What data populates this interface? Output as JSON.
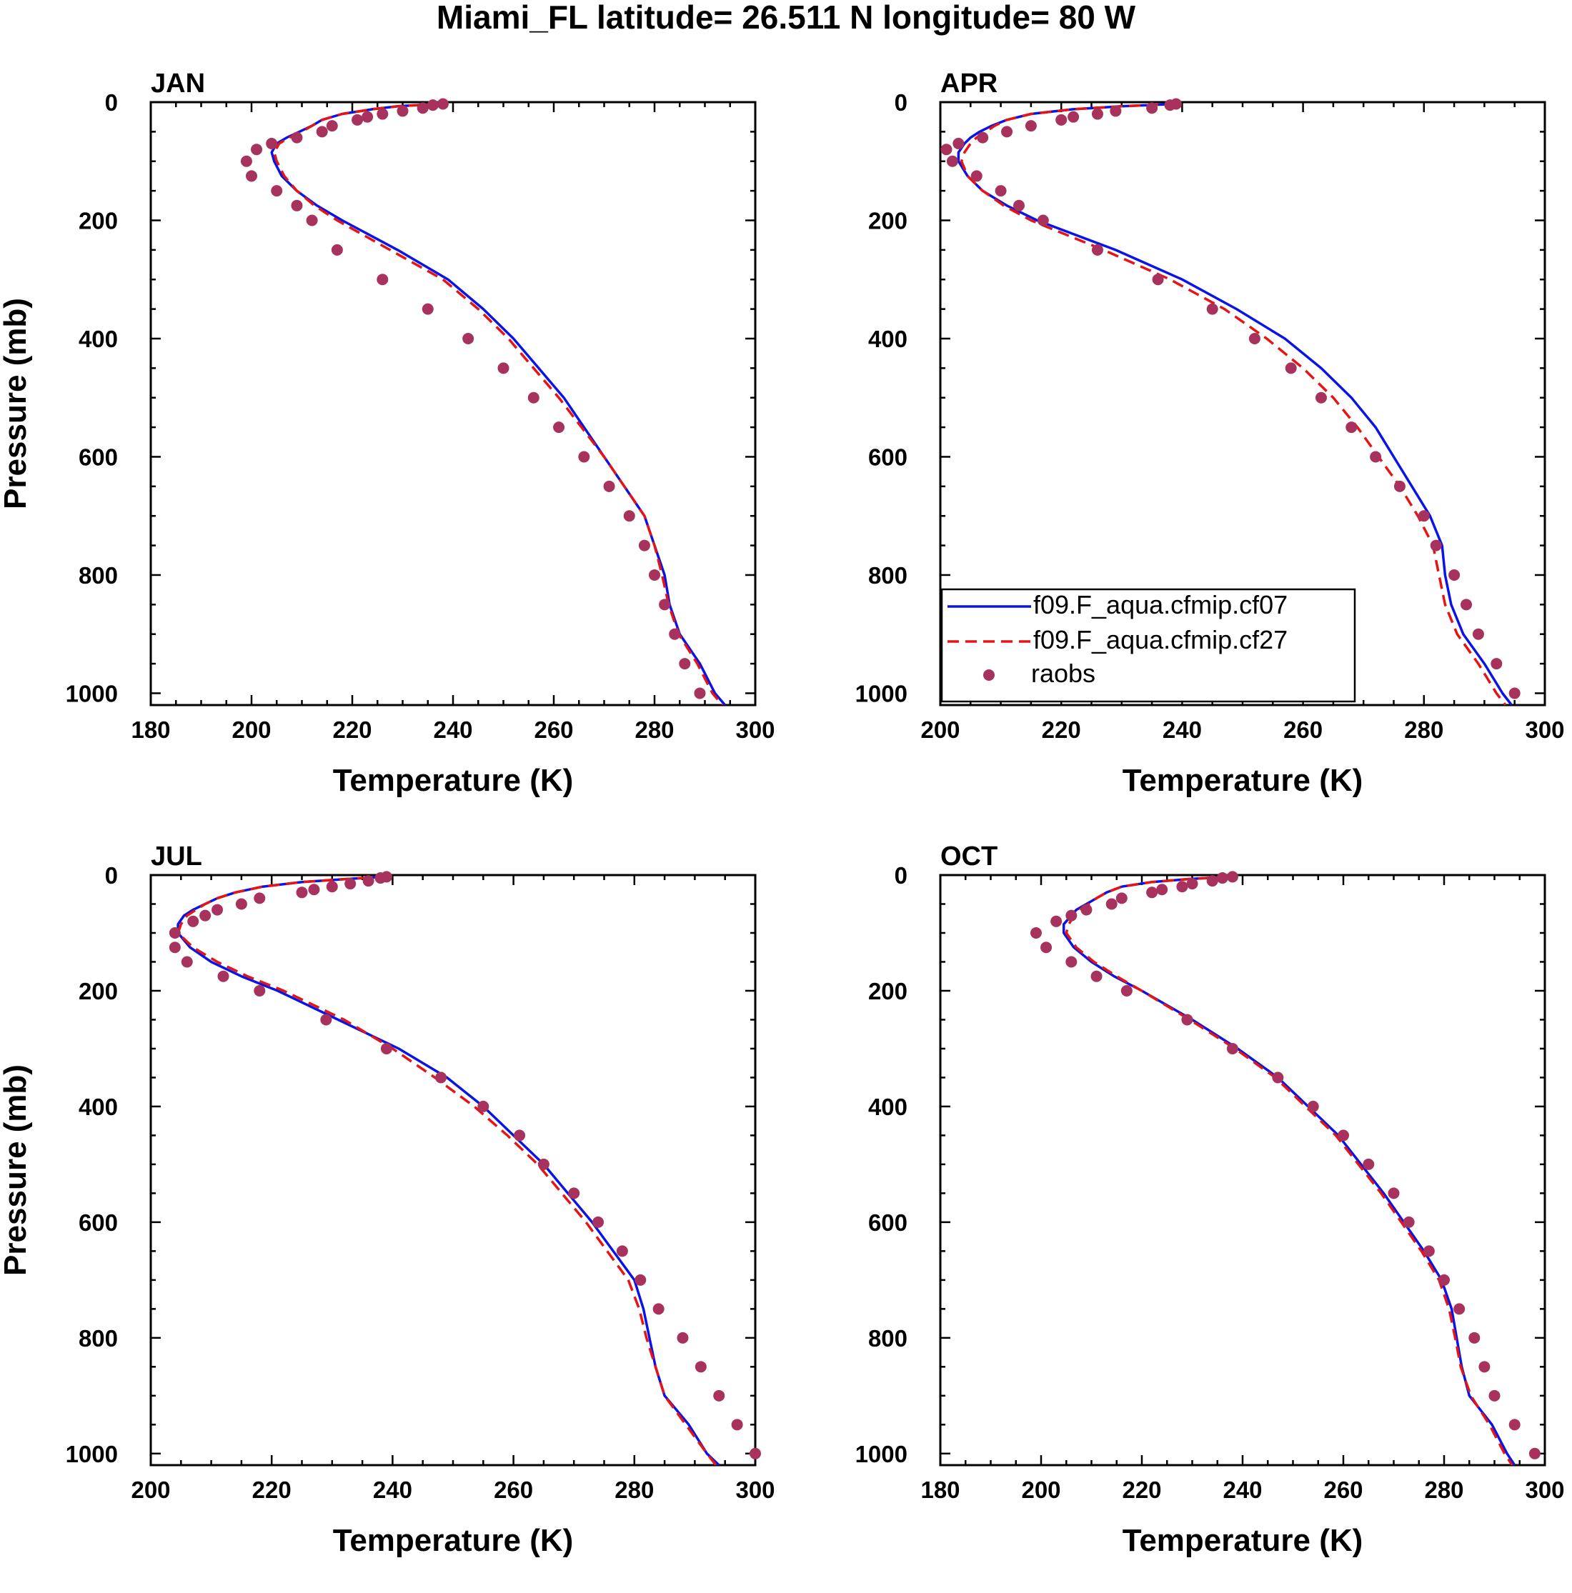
{
  "title": "Miami_FL  latitude= 26.511 N longitude= 80 W",
  "colors": {
    "cf07": "#0a14e6",
    "cf27": "#e61414",
    "raobs": "#a8325e",
    "axis": "#000000"
  },
  "legend": {
    "placement": "inside APR panel, lower-left",
    "entries": [
      "f09.F_aqua.cfmip.cf07",
      "f09.F_aqua.cfmip.cf27",
      "raobs"
    ]
  },
  "chart_data": [
    {
      "panel": "JAN",
      "type": "line",
      "xlabel": "Temperature (K)",
      "ylabel": "Pressure (mb)",
      "xlim": [
        180,
        300
      ],
      "xticks": [
        180,
        200,
        220,
        240,
        260,
        280,
        300
      ],
      "ylim": [
        1020,
        0
      ],
      "yticks": [
        0,
        200,
        400,
        600,
        800,
        1000
      ],
      "pressure": [
        3,
        7,
        12,
        20,
        30,
        40,
        50,
        60,
        70,
        85,
        100,
        125,
        150,
        175,
        200,
        250,
        300,
        350,
        400,
        450,
        500,
        550,
        600,
        650,
        700,
        750,
        800,
        850,
        900,
        950,
        1000,
        1020
      ],
      "series": [
        {
          "name": "f09.F_aqua.cfmip.cf07",
          "style": "solid",
          "values": [
            237,
            229,
            224,
            218,
            214,
            212,
            209.5,
            207,
            205,
            204,
            204.5,
            206,
            209,
            213,
            218,
            229,
            239,
            246,
            252,
            257,
            262,
            266,
            270,
            274,
            278,
            280,
            282,
            283,
            285,
            289,
            292,
            294
          ]
        },
        {
          "name": "f09.F_aqua.cfmip.cf27",
          "style": "dashed",
          "values": [
            237,
            229,
            224,
            218,
            214,
            212,
            210,
            207.5,
            205.5,
            204.5,
            205,
            206.5,
            209,
            212.5,
            217,
            227.5,
            238,
            245,
            251,
            256,
            261,
            265.5,
            270,
            274,
            278,
            280,
            281.5,
            282.8,
            284.8,
            288.5,
            291.5,
            293.5
          ]
        }
      ],
      "raobs": {
        "pressure": [
          3,
          5,
          10,
          15,
          20,
          25,
          30,
          40,
          50,
          60,
          70,
          80,
          100,
          125,
          150,
          175,
          200,
          250,
          300,
          350,
          400,
          450,
          500,
          550,
          600,
          650,
          700,
          750,
          800,
          850,
          900,
          950,
          1000
        ],
        "values": [
          238,
          236,
          234,
          230,
          226,
          223,
          221,
          216,
          214,
          209,
          204,
          201,
          199,
          200,
          205,
          209,
          212,
          217,
          226,
          235,
          243,
          250,
          256,
          261,
          266,
          271,
          275,
          278,
          280,
          282,
          284,
          286,
          289
        ]
      }
    },
    {
      "panel": "APR",
      "type": "line",
      "xlabel": "Temperature (K)",
      "ylabel": "",
      "xlim": [
        200,
        300
      ],
      "xticks": [
        200,
        220,
        240,
        260,
        280,
        300
      ],
      "ylim": [
        1020,
        0
      ],
      "yticks": [
        0,
        200,
        400,
        600,
        800,
        1000
      ],
      "pressure": [
        3,
        7,
        12,
        20,
        30,
        40,
        50,
        60,
        70,
        85,
        100,
        125,
        150,
        175,
        200,
        250,
        300,
        350,
        400,
        450,
        500,
        550,
        600,
        650,
        700,
        750,
        800,
        850,
        900,
        950,
        1000,
        1020
      ],
      "series": [
        {
          "name": "f09.F_aqua.cfmip.cf07",
          "style": "solid",
          "values": [
            239,
            230,
            222,
            215,
            211,
            208.5,
            206.5,
            205,
            204,
            203,
            203,
            204.5,
            207,
            211,
            216,
            229,
            240,
            249,
            257,
            263,
            268,
            272,
            275,
            278,
            281,
            283,
            283.5,
            284.5,
            286.5,
            290,
            293,
            294.5
          ]
        },
        {
          "name": "f09.F_aqua.cfmip.cf27",
          "style": "dashed",
          "values": [
            239,
            230,
            222,
            215,
            211,
            209,
            207.5,
            206,
            205,
            204,
            203.5,
            204.5,
            207,
            210.5,
            215,
            227,
            238,
            247,
            254,
            260,
            265,
            269,
            272.5,
            276,
            279,
            281.5,
            282.5,
            283.5,
            285.5,
            289,
            292,
            293.5
          ]
        }
      ],
      "raobs": {
        "pressure": [
          3,
          5,
          10,
          15,
          20,
          25,
          30,
          40,
          50,
          60,
          70,
          80,
          100,
          125,
          150,
          175,
          200,
          250,
          300,
          350,
          400,
          450,
          500,
          550,
          600,
          650,
          700,
          750,
          800,
          850,
          900,
          950,
          1000
        ],
        "values": [
          239,
          238,
          235,
          229,
          226,
          222,
          220,
          215,
          211,
          207,
          203,
          201,
          202,
          206,
          210,
          213,
          217,
          226,
          236,
          245,
          252,
          258,
          263,
          268,
          272,
          276,
          280,
          282,
          285,
          287,
          289,
          292,
          295
        ]
      }
    },
    {
      "panel": "JUL",
      "type": "line",
      "xlabel": "Temperature (K)",
      "ylabel": "Pressure (mb)",
      "xlim": [
        200,
        300
      ],
      "xticks": [
        200,
        220,
        240,
        260,
        280,
        300
      ],
      "ylim": [
        1020,
        0
      ],
      "yticks": [
        0,
        200,
        400,
        600,
        800,
        1000
      ],
      "pressure": [
        3,
        7,
        12,
        20,
        30,
        40,
        50,
        60,
        70,
        85,
        100,
        125,
        150,
        175,
        200,
        250,
        300,
        350,
        400,
        450,
        500,
        550,
        600,
        650,
        700,
        750,
        800,
        850,
        900,
        950,
        1000,
        1020
      ],
      "series": [
        {
          "name": "f09.F_aqua.cfmip.cf07",
          "style": "solid",
          "values": [
            239,
            232,
            225,
            218.5,
            214,
            211,
            209,
            207,
            205.5,
            204.5,
            204.5,
            206.5,
            210,
            215,
            221,
            231,
            241,
            249,
            255,
            260,
            265,
            269,
            273,
            276.5,
            280,
            281.5,
            282.5,
            283.5,
            285,
            289,
            292,
            294
          ]
        },
        {
          "name": "f09.F_aqua.cfmip.cf27",
          "style": "dashed",
          "values": [
            239,
            232,
            225,
            218.5,
            214,
            211,
            209,
            207.5,
            206,
            205,
            204.5,
            207,
            211,
            216,
            222,
            232,
            240,
            247,
            253.5,
            259,
            264,
            268,
            272,
            275.5,
            279,
            280.8,
            282,
            283.5,
            285,
            288.5,
            292,
            293.5
          ]
        }
      ],
      "raobs": {
        "pressure": [
          3,
          5,
          10,
          15,
          20,
          25,
          30,
          40,
          50,
          60,
          70,
          80,
          100,
          125,
          150,
          175,
          200,
          250,
          300,
          350,
          400,
          450,
          500,
          550,
          600,
          650,
          700,
          750,
          800,
          850,
          900,
          950,
          1000
        ],
        "values": [
          239,
          238,
          236,
          233,
          230,
          227,
          225,
          218,
          215,
          211,
          209,
          207,
          204,
          204,
          206,
          212,
          218,
          229,
          239,
          248,
          255,
          261,
          265,
          270,
          274,
          278,
          281,
          284,
          288,
          291,
          294,
          297,
          300
        ]
      }
    },
    {
      "panel": "OCT",
      "type": "line",
      "xlabel": "Temperature (K)",
      "ylabel": "",
      "xlim": [
        180,
        300
      ],
      "xticks": [
        180,
        200,
        220,
        240,
        260,
        280,
        300
      ],
      "ylim": [
        1020,
        0
      ],
      "yticks": [
        0,
        200,
        400,
        600,
        800,
        1000
      ],
      "pressure": [
        3,
        7,
        12,
        20,
        30,
        40,
        50,
        60,
        70,
        85,
        100,
        125,
        150,
        175,
        200,
        250,
        300,
        350,
        400,
        450,
        500,
        550,
        600,
        650,
        700,
        750,
        800,
        850,
        900,
        950,
        1000,
        1020
      ],
      "series": [
        {
          "name": "f09.F_aqua.cfmip.cf07",
          "style": "solid",
          "values": [
            237,
            229,
            222,
            216,
            213,
            211,
            209,
            207,
            206,
            204.5,
            204.5,
            206.5,
            210,
            214.5,
            220,
            230,
            239,
            247,
            253,
            259,
            263.5,
            268,
            272,
            276,
            279.5,
            281.5,
            282.5,
            283.5,
            285,
            289.5,
            292.5,
            294
          ]
        },
        {
          "name": "f09.F_aqua.cfmip.cf27",
          "style": "dashed",
          "values": [
            237,
            229,
            222,
            216,
            213,
            211,
            209.5,
            207.5,
            206.5,
            205.5,
            205,
            207,
            210.5,
            215,
            220,
            229.5,
            238.5,
            246.5,
            252.5,
            258.5,
            263,
            267.5,
            271.5,
            275.5,
            279,
            281,
            282.2,
            283.3,
            285.3,
            289,
            292,
            293.5
          ]
        }
      ],
      "raobs": {
        "pressure": [
          3,
          5,
          10,
          15,
          20,
          25,
          30,
          40,
          50,
          60,
          70,
          80,
          100,
          125,
          150,
          175,
          200,
          250,
          300,
          350,
          400,
          450,
          500,
          550,
          600,
          650,
          700,
          750,
          800,
          850,
          900,
          950,
          1000
        ],
        "values": [
          238,
          236,
          234,
          230,
          228,
          224,
          222,
          216,
          214,
          209,
          206,
          203,
          199,
          201,
          206,
          211,
          217,
          229,
          238,
          247,
          254,
          260,
          265,
          270,
          273,
          277,
          280,
          283,
          286,
          288,
          290,
          294,
          298
        ]
      }
    }
  ]
}
